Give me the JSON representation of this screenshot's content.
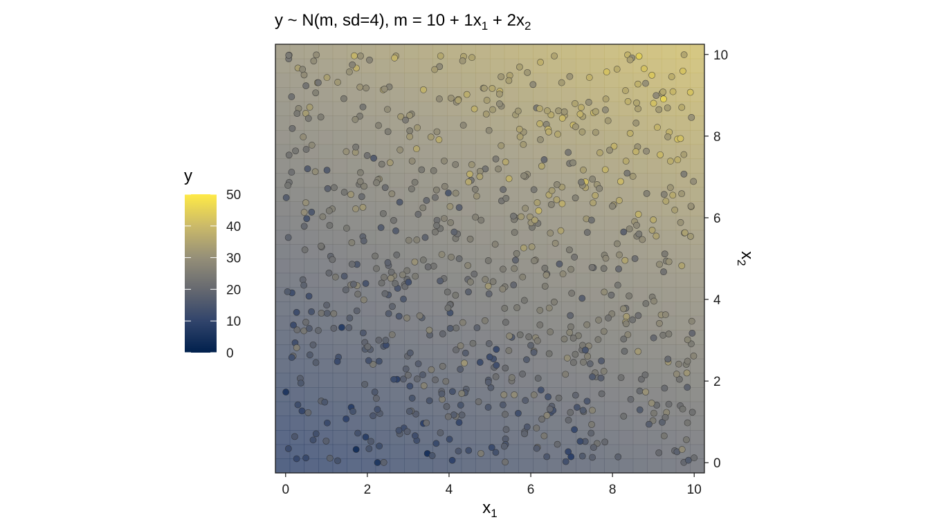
{
  "chart_data": {
    "type": "scatter",
    "title": "y ~ N(m, sd=4), m = 10 + 1x₁ + 2x₂",
    "title_parts": {
      "prefix": "y ~ N(m, sd=4), m = 10 + 1x",
      "sub1": "1",
      "mid": " + 2x",
      "sub2": "2"
    },
    "xlabel": "x",
    "xlabel_sub": "1",
    "ylabel": "x",
    "ylabel_sub": "2",
    "xlim": [
      -0.25,
      10.25
    ],
    "ylim": [
      -0.25,
      10.25
    ],
    "x_ticks": [
      0,
      2,
      4,
      6,
      8,
      10
    ],
    "y_ticks": [
      0,
      2,
      4,
      6,
      8,
      10
    ],
    "y_axis_position": "right",
    "grid": false,
    "background": "raster of mean m = 10 + 1*x1 + 2*x2",
    "model": {
      "intercept": 10,
      "b1": 1,
      "b2": 2,
      "sd": 4
    },
    "n_points": 800,
    "seed": 7,
    "colorbar": {
      "title": "y",
      "min": 0,
      "max": 50,
      "ticks": [
        0,
        10,
        20,
        30,
        40,
        50
      ],
      "palette": [
        "#00204d",
        "#31446b",
        "#666970",
        "#958f78",
        "#cbba69",
        "#ffea46"
      ],
      "position": "left"
    }
  }
}
